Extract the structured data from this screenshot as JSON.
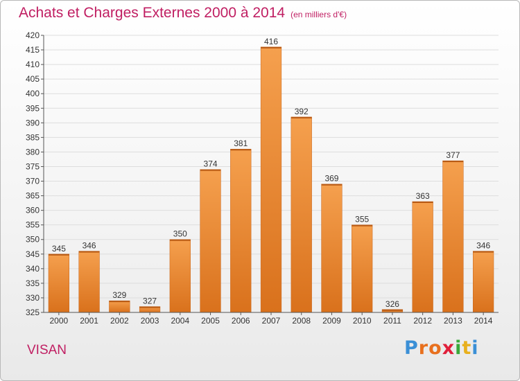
{
  "header": {
    "title": "Achats et Charges Externes 2000 à 2014",
    "subtitle": "(en milliers d'€)"
  },
  "footer": {
    "commune": "VISAN",
    "logo_letters": [
      "P",
      "r",
      "o",
      "x",
      "i",
      "t",
      "i"
    ],
    "logo_colors": [
      "#3a8fd6",
      "#e8701e",
      "#e8701e",
      "#e01f3a",
      "#3aa83a",
      "#e8b01e",
      "#3a8fd6"
    ]
  },
  "chart_data": {
    "type": "bar",
    "categories": [
      "2000",
      "2001",
      "2002",
      "2003",
      "2004",
      "2005",
      "2006",
      "2007",
      "2008",
      "2009",
      "2010",
      "2011",
      "2012",
      "2013",
      "2014"
    ],
    "values": [
      345,
      346,
      329,
      327,
      350,
      374,
      381,
      416,
      392,
      369,
      355,
      326,
      363,
      377,
      346
    ],
    "title": "Achats et Charges Externes 2000 à 2014",
    "xlabel": "",
    "ylabel": "",
    "ylim": [
      325,
      420
    ],
    "yticks": [
      325,
      330,
      335,
      340,
      345,
      350,
      355,
      360,
      365,
      370,
      375,
      380,
      385,
      390,
      395,
      400,
      405,
      410,
      415,
      420
    ],
    "grid": true,
    "bar_color": "#f0913a",
    "bar_color_dark": "#d9701a",
    "grid_color": "#dddddd"
  }
}
